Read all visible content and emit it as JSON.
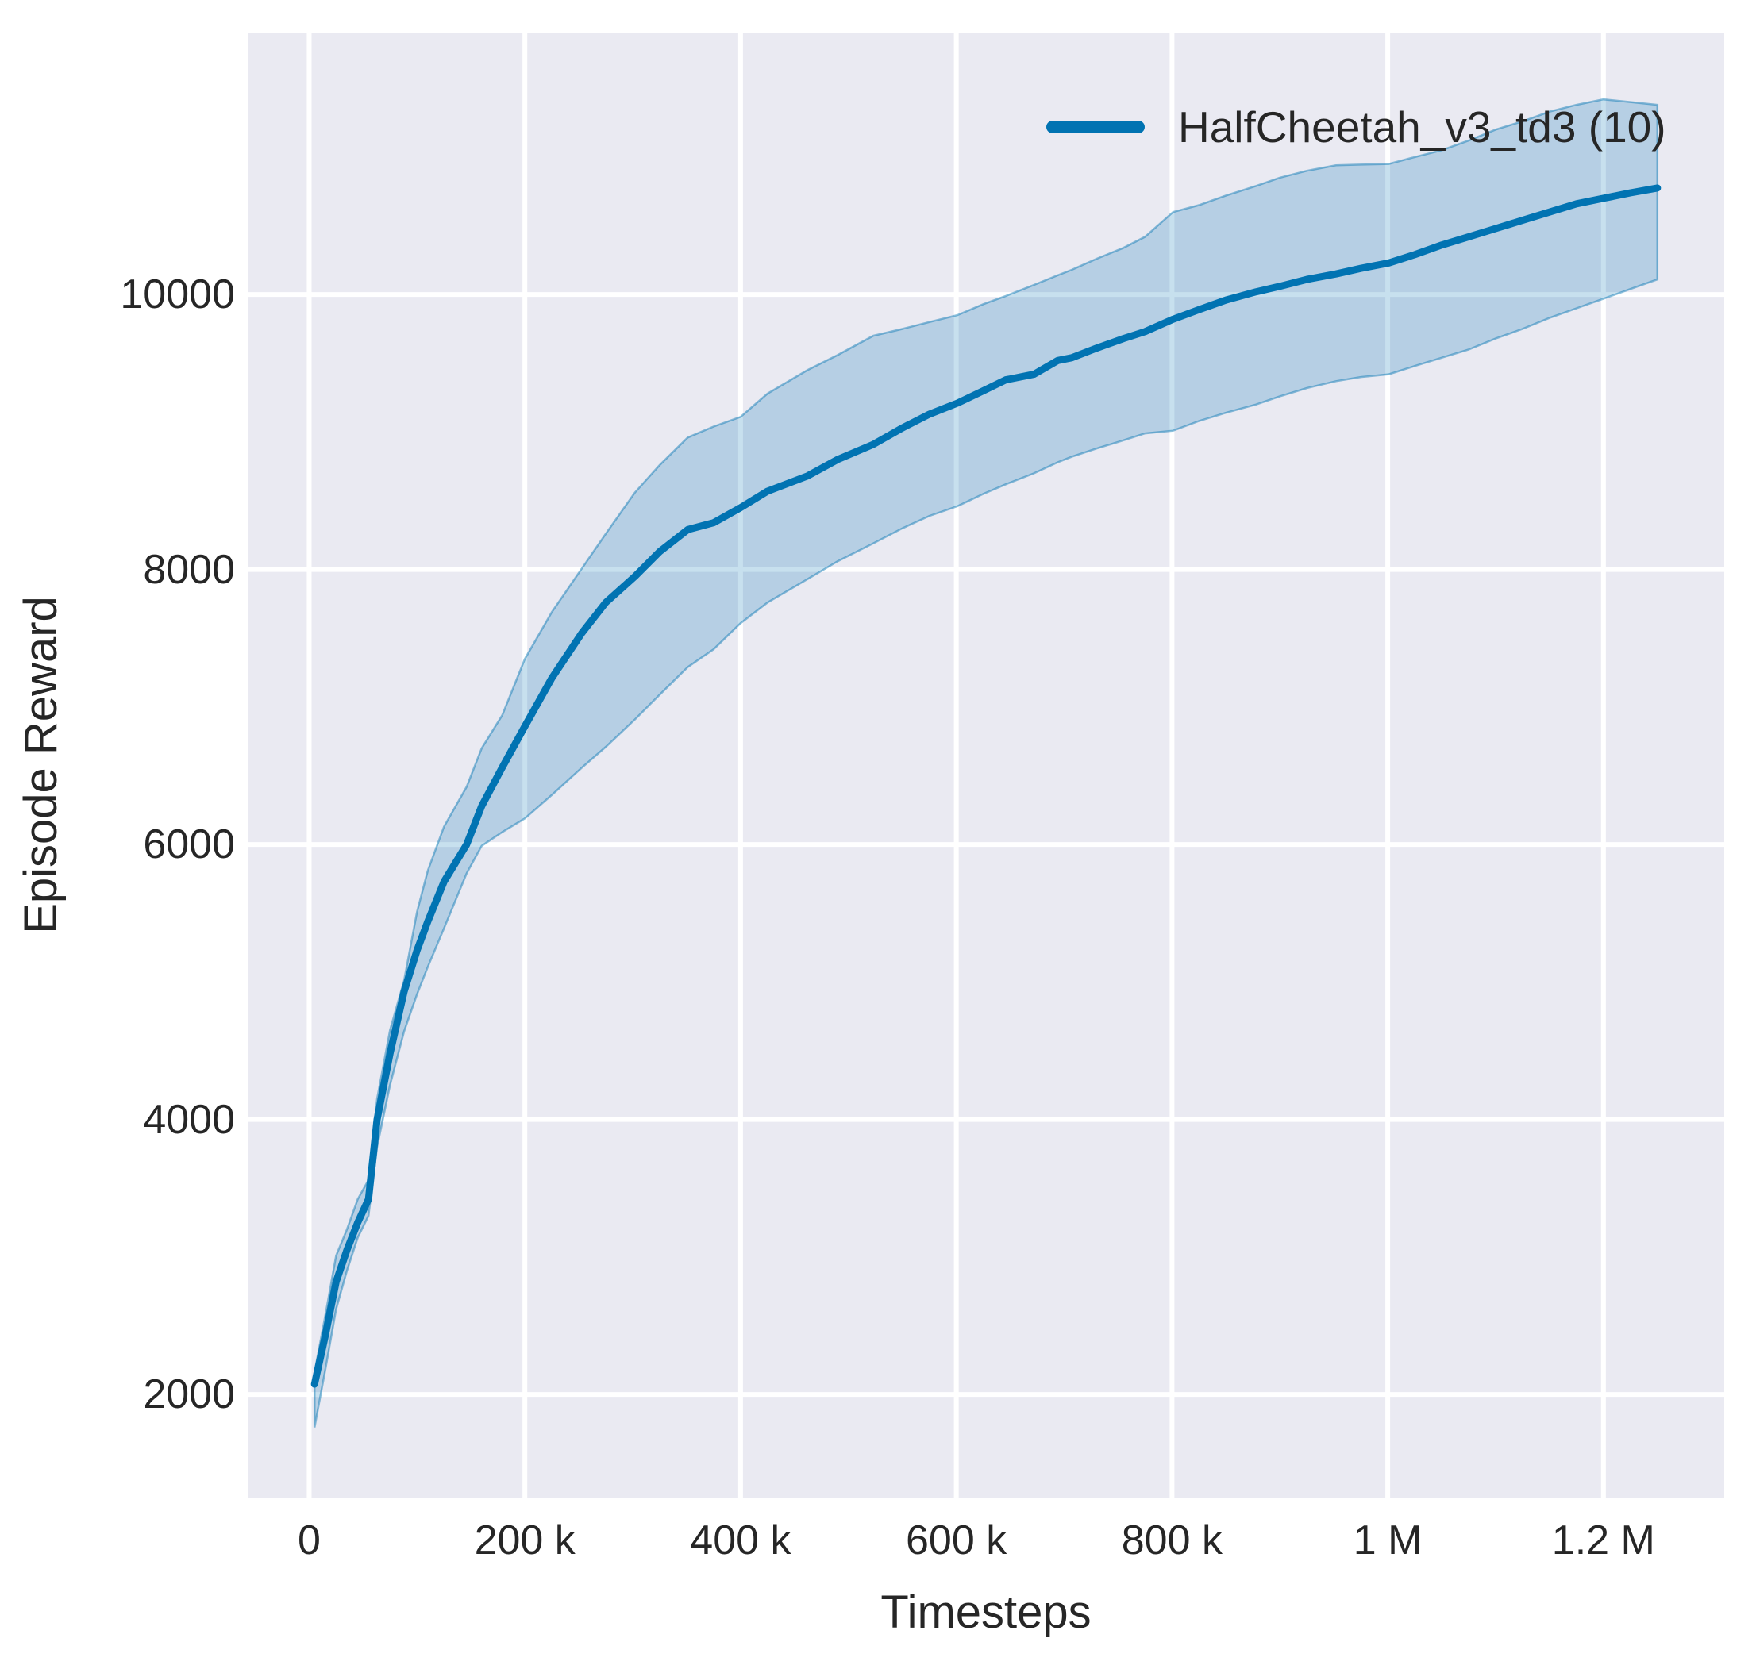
{
  "figure": {
    "outer_background": "#ffffff",
    "plot_background": "#eaeaf2",
    "grid_color": "#ffffff",
    "text_color": "#262626"
  },
  "legend": {
    "label": "HalfCheetah_v3_td3 (10)",
    "line_color": "#0173b2"
  },
  "chart_data": {
    "type": "line",
    "title": "",
    "xlabel": "Timesteps",
    "ylabel": "Episode Reward",
    "grid": true,
    "legend_position": "upper right",
    "x_unit": "timesteps (values in thousands)",
    "xlim_thousands": [
      -57,
      1312
    ],
    "ylim": [
      1250,
      11900
    ],
    "x_ticks": [
      {
        "value": 0,
        "label": "0"
      },
      {
        "value": 200,
        "label": "200 k"
      },
      {
        "value": 400,
        "label": "400 k"
      },
      {
        "value": 600,
        "label": "600 k"
      },
      {
        "value": 800,
        "label": "800 k"
      },
      {
        "value": 1000,
        "label": "1 M"
      },
      {
        "value": 1200,
        "label": "1.2 M"
      }
    ],
    "y_ticks": [
      {
        "value": 2000,
        "label": "2000"
      },
      {
        "value": 4000,
        "label": "4000"
      },
      {
        "value": 6000,
        "label": "6000"
      },
      {
        "value": 8000,
        "label": "8000"
      },
      {
        "value": 10000,
        "label": "10000"
      }
    ],
    "series": [
      {
        "name": "HalfCheetah_v3_td3 (10)",
        "color": "#0173b2",
        "band_color": "#0173b2",
        "band_opacity": 0.22,
        "x_thousands": [
          5,
          15,
          25,
          35,
          45,
          55,
          63,
          75,
          88,
          100,
          110,
          125,
          146,
          160,
          179,
          200,
          225,
          253,
          275,
          302,
          325,
          351,
          375,
          400,
          425,
          462,
          490,
          523,
          550,
          575,
          601,
          625,
          646,
          672,
          694,
          707,
          730,
          755,
          775,
          801,
          825,
          850,
          878,
          900,
          925,
          952,
          975,
          1001,
          1025,
          1050,
          1075,
          1100,
          1125,
          1150,
          1175,
          1200,
          1225,
          1250
        ],
        "mean": [
          2075,
          2430,
          2820,
          3050,
          3250,
          3420,
          4000,
          4480,
          4930,
          5230,
          5440,
          5730,
          6000,
          6280,
          6560,
          6860,
          7210,
          7540,
          7760,
          7950,
          8130,
          8290,
          8340,
          8450,
          8570,
          8680,
          8800,
          8910,
          9030,
          9130,
          9210,
          9300,
          9380,
          9420,
          9520,
          9540,
          9610,
          9680,
          9730,
          9820,
          9890,
          9960,
          10020,
          10060,
          10110,
          10150,
          10190,
          10230,
          10290,
          10360,
          10420,
          10480,
          10540,
          10600,
          10660,
          10700,
          10740,
          10775
        ],
        "lower": [
          1760,
          2180,
          2620,
          2900,
          3140,
          3300,
          3800,
          4250,
          4640,
          4910,
          5110,
          5390,
          5790,
          5990,
          6090,
          6190,
          6360,
          6560,
          6710,
          6910,
          7090,
          7290,
          7420,
          7610,
          7760,
          7930,
          8060,
          8190,
          8300,
          8390,
          8460,
          8550,
          8620,
          8700,
          8780,
          8820,
          8880,
          8940,
          8990,
          9010,
          9080,
          9140,
          9200,
          9260,
          9320,
          9370,
          9400,
          9420,
          9480,
          9540,
          9600,
          9680,
          9750,
          9830,
          9900,
          9970,
          10040,
          10110
        ],
        "upper": [
          2160,
          2575,
          3010,
          3200,
          3420,
          3560,
          4150,
          4650,
          5010,
          5510,
          5810,
          6130,
          6420,
          6700,
          6940,
          7350,
          7690,
          8010,
          8260,
          8560,
          8760,
          8960,
          9040,
          9110,
          9280,
          9450,
          9560,
          9700,
          9750,
          9800,
          9850,
          9930,
          9990,
          10070,
          10140,
          10180,
          10260,
          10340,
          10420,
          10600,
          10650,
          10720,
          10790,
          10850,
          10900,
          10940,
          10945,
          10950,
          11000,
          11050,
          11120,
          11200,
          11260,
          11330,
          11380,
          11420,
          11400,
          11380
        ]
      }
    ]
  }
}
